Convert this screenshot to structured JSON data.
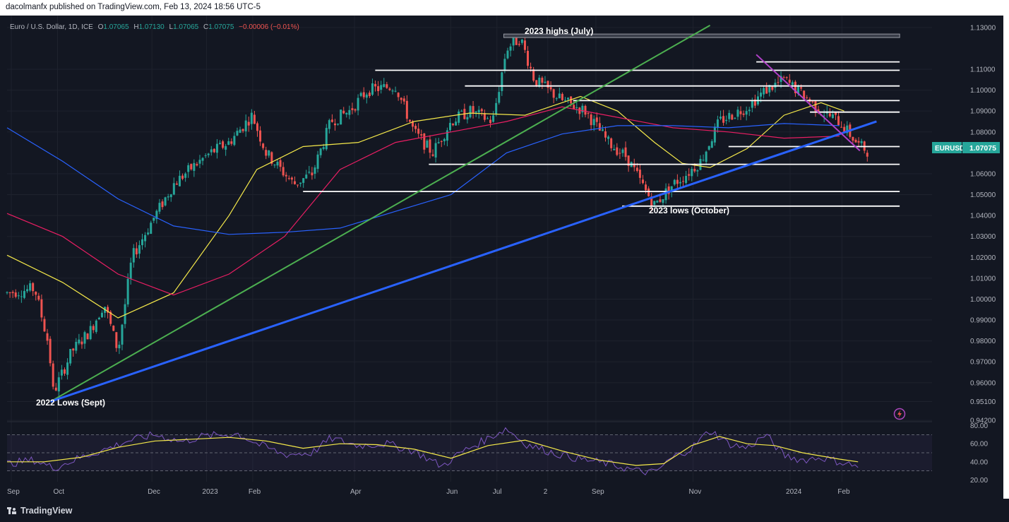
{
  "header": {
    "published_text": "dacolmanfx published on TradingView.com, Feb 13, 2024 18:56 UTC-5"
  },
  "legend": {
    "symbol": "Euro / U.S. Dollar, 1D, ICE",
    "o_label": "O",
    "o_value": "1.07065",
    "h_label": "H",
    "h_value": "1.07130",
    "l_label": "L",
    "l_value": "1.07065",
    "c_label": "C",
    "c_value": "1.07075",
    "change": "−0.00006 (−0.01%)"
  },
  "price_tag": {
    "symbol": "EURUSD",
    "value": "1.07075"
  },
  "footer": {
    "brand": "TradingView"
  },
  "colors": {
    "background": "#131722",
    "candle_up": "#26a69a",
    "candle_down": "#ef5350",
    "ma_fast": "#f5e94a",
    "ma_mid": "#e91e63",
    "ma_slow": "#2962ff",
    "trend_green": "#4caf50",
    "trend_blue": "#2962ff",
    "trend_purple": "#b040c8",
    "rsi": "#7e57c2",
    "rsi_ma": "#f5e94a"
  },
  "icons": {
    "lightning": "lightning-icon"
  },
  "chart_data": [
    {
      "type": "candlestick",
      "title": "Euro / U.S. Dollar, 1D, ICE",
      "y_ticks": [
        "1.13000",
        "1.11000",
        "1.10000",
        "1.09000",
        "1.08000",
        "1.06000",
        "1.05000",
        "1.04000",
        "1.03000",
        "1.02000",
        "1.01000",
        "1.00000",
        "0.99000",
        "0.98000",
        "0.97000",
        "0.96000",
        "0.95100",
        "0.94200"
      ],
      "y_tick_values": [
        1.13,
        1.11,
        1.1,
        1.09,
        1.08,
        1.06,
        1.05,
        1.04,
        1.03,
        1.02,
        1.01,
        1.0,
        0.99,
        0.98,
        0.97,
        0.96,
        0.951,
        0.942
      ],
      "x_ticks": [
        "Sep",
        "Oct",
        "Dec",
        "2023",
        "Feb",
        "Apr",
        "Jun",
        "Jul",
        "2",
        "Sep",
        "Nov",
        "2024",
        "Feb"
      ],
      "x_tick_pos": [
        0.0,
        0.05,
        0.152,
        0.211,
        0.261,
        0.371,
        0.475,
        0.525,
        0.58,
        0.632,
        0.737,
        0.842,
        0.898
      ],
      "ylim": [
        0.942,
        1.13
      ],
      "annotations": [
        "2023 highs (July)",
        "2023 lows (October)",
        "2022 Lows (Sept)"
      ],
      "key_points": [
        {
          "t": 0.0,
          "p": 1.003
        },
        {
          "t": 0.03,
          "p": 1.005
        },
        {
          "t": 0.045,
          "p": 0.978
        },
        {
          "t": 0.05,
          "p": 0.955
        },
        {
          "t": 0.07,
          "p": 0.975
        },
        {
          "t": 0.09,
          "p": 0.985
        },
        {
          "t": 0.105,
          "p": 0.998
        },
        {
          "t": 0.12,
          "p": 0.975
        },
        {
          "t": 0.135,
          "p": 1.02
        },
        {
          "t": 0.16,
          "p": 1.04
        },
        {
          "t": 0.18,
          "p": 1.055
        },
        {
          "t": 0.2,
          "p": 1.063
        },
        {
          "t": 0.22,
          "p": 1.07
        },
        {
          "t": 0.24,
          "p": 1.075
        },
        {
          "t": 0.265,
          "p": 1.088
        },
        {
          "t": 0.28,
          "p": 1.07
        },
        {
          "t": 0.31,
          "p": 1.055
        },
        {
          "t": 0.33,
          "p": 1.06
        },
        {
          "t": 0.35,
          "p": 1.085
        },
        {
          "t": 0.37,
          "p": 1.09
        },
        {
          "t": 0.39,
          "p": 1.1
        },
        {
          "t": 0.42,
          "p": 1.102
        },
        {
          "t": 0.44,
          "p": 1.08
        },
        {
          "t": 0.46,
          "p": 1.07
        },
        {
          "t": 0.48,
          "p": 1.085
        },
        {
          "t": 0.5,
          "p": 1.09
        },
        {
          "t": 0.525,
          "p": 1.085
        },
        {
          "t": 0.54,
          "p": 1.12
        },
        {
          "t": 0.555,
          "p": 1.125
        },
        {
          "t": 0.57,
          "p": 1.105
        },
        {
          "t": 0.6,
          "p": 1.095
        },
        {
          "t": 0.625,
          "p": 1.09
        },
        {
          "t": 0.65,
          "p": 1.075
        },
        {
          "t": 0.67,
          "p": 1.068
        },
        {
          "t": 0.69,
          "p": 1.052
        },
        {
          "t": 0.7,
          "p": 1.045
        },
        {
          "t": 0.72,
          "p": 1.055
        },
        {
          "t": 0.735,
          "p": 1.06
        },
        {
          "t": 0.75,
          "p": 1.066
        },
        {
          "t": 0.77,
          "p": 1.085
        },
        {
          "t": 0.8,
          "p": 1.092
        },
        {
          "t": 0.82,
          "p": 1.1
        },
        {
          "t": 0.84,
          "p": 1.105
        },
        {
          "t": 0.86,
          "p": 1.098
        },
        {
          "t": 0.88,
          "p": 1.09
        },
        {
          "t": 0.9,
          "p": 1.085
        },
        {
          "t": 0.92,
          "p": 1.074
        },
        {
          "t": 0.93,
          "p": 1.071
        }
      ],
      "series": [
        {
          "name": "",
          "role": "ma_fast",
          "points": [
            [
              0.0,
              1.021
            ],
            [
              0.06,
              1.008
            ],
            [
              0.12,
              0.991
            ],
            [
              0.18,
              1.003
            ],
            [
              0.24,
              1.04
            ],
            [
              0.27,
              1.062
            ],
            [
              0.32,
              1.073
            ],
            [
              0.38,
              1.075
            ],
            [
              0.44,
              1.085
            ],
            [
              0.5,
              1.089
            ],
            [
              0.56,
              1.088
            ],
            [
              0.62,
              1.097
            ],
            [
              0.66,
              1.09
            ],
            [
              0.7,
              1.075
            ],
            [
              0.73,
              1.065
            ],
            [
              0.76,
              1.063
            ],
            [
              0.8,
              1.072
            ],
            [
              0.84,
              1.088
            ],
            [
              0.88,
              1.094
            ],
            [
              0.905,
              1.09
            ]
          ]
        },
        {
          "name": "",
          "role": "ma_mid",
          "points": [
            [
              0.0,
              1.041
            ],
            [
              0.06,
              1.03
            ],
            [
              0.12,
              1.012
            ],
            [
              0.18,
              1.002
            ],
            [
              0.24,
              1.012
            ],
            [
              0.3,
              1.03
            ],
            [
              0.36,
              1.062
            ],
            [
              0.42,
              1.075
            ],
            [
              0.48,
              1.08
            ],
            [
              0.54,
              1.085
            ],
            [
              0.6,
              1.092
            ],
            [
              0.66,
              1.087
            ],
            [
              0.72,
              1.082
            ],
            [
              0.78,
              1.08
            ],
            [
              0.84,
              1.077
            ],
            [
              0.9,
              1.078
            ]
          ]
        },
        {
          "name": "",
          "role": "ma_slow",
          "points": [
            [
              0.0,
              1.082
            ],
            [
              0.06,
              1.066
            ],
            [
              0.12,
              1.048
            ],
            [
              0.18,
              1.035
            ],
            [
              0.24,
              1.031
            ],
            [
              0.3,
              1.032
            ],
            [
              0.36,
              1.034
            ],
            [
              0.42,
              1.042
            ],
            [
              0.48,
              1.05
            ],
            [
              0.54,
              1.07
            ],
            [
              0.6,
              1.079
            ],
            [
              0.66,
              1.083
            ],
            [
              0.72,
              1.083
            ],
            [
              0.78,
              1.082
            ],
            [
              0.84,
              1.084
            ],
            [
              0.9,
              1.083
            ]
          ]
        }
      ],
      "hlines": [
        {
          "p": 1.126,
          "from": 0.537,
          "to": 0.965,
          "style": "band"
        },
        {
          "p": 1.1135,
          "from": 0.81,
          "to": 0.965
        },
        {
          "p": 1.1095,
          "from": 0.398,
          "to": 0.965
        },
        {
          "p": 1.102,
          "from": 0.495,
          "to": 0.965
        },
        {
          "p": 1.095,
          "from": 0.612,
          "to": 0.965
        },
        {
          "p": 1.0895,
          "from": 0.868,
          "to": 0.965
        },
        {
          "p": 1.073,
          "from": 0.78,
          "to": 0.965
        },
        {
          "p": 1.0645,
          "from": 0.456,
          "to": 0.965
        },
        {
          "p": 1.0515,
          "from": 0.32,
          "to": 0.965
        },
        {
          "p": 1.0445,
          "from": 0.665,
          "to": 0.965
        }
      ],
      "trendlines": [
        {
          "role": "trend_green",
          "from": [
            0.047,
            0.951
          ],
          "to": [
            0.76,
            1.131
          ]
        },
        {
          "role": "trend_blue",
          "from": [
            0.047,
            0.951
          ],
          "to": [
            0.94,
            1.085
          ]
        },
        {
          "role": "trend_purple",
          "from": [
            0.81,
            1.117
          ],
          "to": [
            0.922,
            1.071
          ]
        }
      ]
    },
    {
      "type": "line",
      "title": "",
      "y_ticks": [
        "80.00",
        "60.00",
        "40.00",
        "20.00"
      ],
      "y_tick_values": [
        80,
        60,
        40,
        20
      ],
      "ylim": [
        20,
        80
      ],
      "series": [
        {
          "name": "",
          "role": "rsi",
          "points": [
            [
              0.0,
              38
            ],
            [
              0.03,
              42
            ],
            [
              0.05,
              33
            ],
            [
              0.08,
              45
            ],
            [
              0.11,
              55
            ],
            [
              0.13,
              63
            ],
            [
              0.16,
              70
            ],
            [
              0.19,
              62
            ],
            [
              0.21,
              68
            ],
            [
              0.25,
              71
            ],
            [
              0.27,
              60
            ],
            [
              0.3,
              48
            ],
            [
              0.33,
              50
            ],
            [
              0.35,
              66
            ],
            [
              0.38,
              58
            ],
            [
              0.41,
              60
            ],
            [
              0.44,
              52
            ],
            [
              0.47,
              35
            ],
            [
              0.49,
              50
            ],
            [
              0.52,
              66
            ],
            [
              0.54,
              77
            ],
            [
              0.56,
              60
            ],
            [
              0.59,
              50
            ],
            [
              0.62,
              43
            ],
            [
              0.65,
              38
            ],
            [
              0.68,
              30
            ],
            [
              0.7,
              28
            ],
            [
              0.72,
              45
            ],
            [
              0.74,
              55
            ],
            [
              0.76,
              75
            ],
            [
              0.78,
              60
            ],
            [
              0.8,
              55
            ],
            [
              0.82,
              70
            ],
            [
              0.84,
              47
            ],
            [
              0.86,
              42
            ],
            [
              0.88,
              45
            ],
            [
              0.9,
              40
            ],
            [
              0.92,
              35
            ]
          ]
        },
        {
          "name": "",
          "role": "rsi_ma",
          "points": [
            [
              0.0,
              40
            ],
            [
              0.04,
              40
            ],
            [
              0.08,
              45
            ],
            [
              0.12,
              56
            ],
            [
              0.16,
              63
            ],
            [
              0.2,
              65
            ],
            [
              0.24,
              67
            ],
            [
              0.28,
              63
            ],
            [
              0.32,
              55
            ],
            [
              0.36,
              60
            ],
            [
              0.4,
              59
            ],
            [
              0.44,
              54
            ],
            [
              0.48,
              44
            ],
            [
              0.52,
              58
            ],
            [
              0.56,
              64
            ],
            [
              0.6,
              52
            ],
            [
              0.64,
              42
            ],
            [
              0.68,
              36
            ],
            [
              0.71,
              38
            ],
            [
              0.74,
              58
            ],
            [
              0.77,
              68
            ],
            [
              0.8,
              60
            ],
            [
              0.83,
              58
            ],
            [
              0.86,
              50
            ],
            [
              0.9,
              43
            ],
            [
              0.92,
              40
            ]
          ]
        }
      ]
    }
  ]
}
